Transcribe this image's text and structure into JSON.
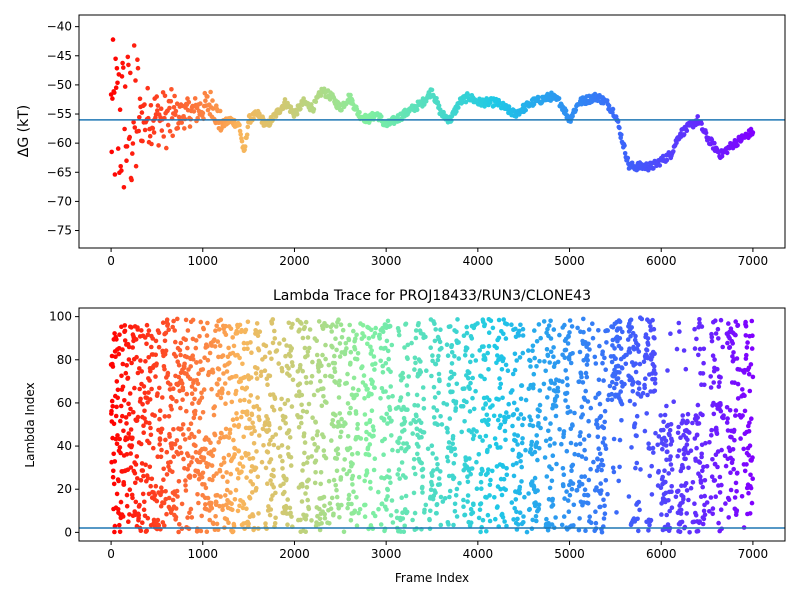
{
  "figure": {
    "colormap": "rainbow",
    "background": "#ffffff",
    "reference_line_color": "#1f77b4"
  },
  "chart_data": [
    {
      "type": "scatter",
      "title": "",
      "xlabel": "",
      "ylabel": "ΔG (kT)",
      "xlim": [
        -350,
        7350
      ],
      "ylim": [
        -78,
        -38
      ],
      "xticks": [
        0,
        1000,
        2000,
        3000,
        4000,
        5000,
        6000,
        7000
      ],
      "yticks": [
        -75,
        -70,
        -65,
        -60,
        -55,
        -50,
        -45,
        -40
      ],
      "reference_line": -56,
      "color_by": "x",
      "x_range": [
        0,
        7000
      ],
      "key_points": [
        [
          0,
          -56
        ],
        [
          200,
          -57
        ],
        [
          400,
          -55
        ],
        [
          600,
          -56
        ],
        [
          800,
          -55
        ],
        [
          1000,
          -54
        ],
        [
          1100,
          -53
        ],
        [
          1200,
          -57
        ],
        [
          1300,
          -56
        ],
        [
          1400,
          -57
        ],
        [
          1450,
          -62
        ],
        [
          1500,
          -56
        ],
        [
          1600,
          -55
        ],
        [
          1700,
          -57
        ],
        [
          1800,
          -55
        ],
        [
          1900,
          -53
        ],
        [
          2000,
          -55
        ],
        [
          2100,
          -53
        ],
        [
          2200,
          -54
        ],
        [
          2300,
          -51
        ],
        [
          2400,
          -52
        ],
        [
          2500,
          -54
        ],
        [
          2600,
          -52
        ],
        [
          2700,
          -55
        ],
        [
          2800,
          -56
        ],
        [
          2900,
          -55
        ],
        [
          3000,
          -57
        ],
        [
          3100,
          -56
        ],
        [
          3200,
          -55
        ],
        [
          3300,
          -54
        ],
        [
          3400,
          -53
        ],
        [
          3500,
          -51
        ],
        [
          3600,
          -55
        ],
        [
          3700,
          -56
        ],
        [
          3800,
          -53
        ],
        [
          3900,
          -52
        ],
        [
          4000,
          -53
        ],
        [
          4200,
          -53
        ],
        [
          4400,
          -55
        ],
        [
          4600,
          -53
        ],
        [
          4800,
          -52
        ],
        [
          4900,
          -53
        ],
        [
          5000,
          -56
        ],
        [
          5100,
          -53
        ],
        [
          5300,
          -52
        ],
        [
          5400,
          -53
        ],
        [
          5500,
          -55
        ],
        [
          5600,
          -61
        ],
        [
          5650,
          -64
        ],
        [
          5900,
          -64
        ],
        [
          6000,
          -63
        ],
        [
          6100,
          -62
        ],
        [
          6200,
          -58.5
        ],
        [
          6400,
          -56
        ],
        [
          6500,
          -59
        ],
        [
          6650,
          -62
        ],
        [
          6800,
          -60
        ],
        [
          7000,
          -58
        ]
      ]
    },
    {
      "type": "scatter",
      "title": "Lambda Trace for PROJ18433/RUN3/CLONE43",
      "xlabel": "Frame Index",
      "ylabel": "Lambda Index",
      "xlim": [
        -350,
        7350
      ],
      "ylim": [
        -4,
        104
      ],
      "xticks": [
        0,
        1000,
        2000,
        3000,
        4000,
        5000,
        6000,
        7000
      ],
      "yticks": [
        0,
        20,
        40,
        60,
        80,
        100
      ],
      "reference_line": 2,
      "color_by": "x",
      "x_range": [
        0,
        7000
      ],
      "y_range": [
        0,
        99
      ],
      "dense_regions": [
        {
          "x_range": [
            5400,
            5650
          ],
          "y_range": [
            60,
            99
          ]
        },
        {
          "x_range": [
            5950,
            6350
          ],
          "y_range": [
            0,
            55
          ]
        }
      ]
    }
  ]
}
